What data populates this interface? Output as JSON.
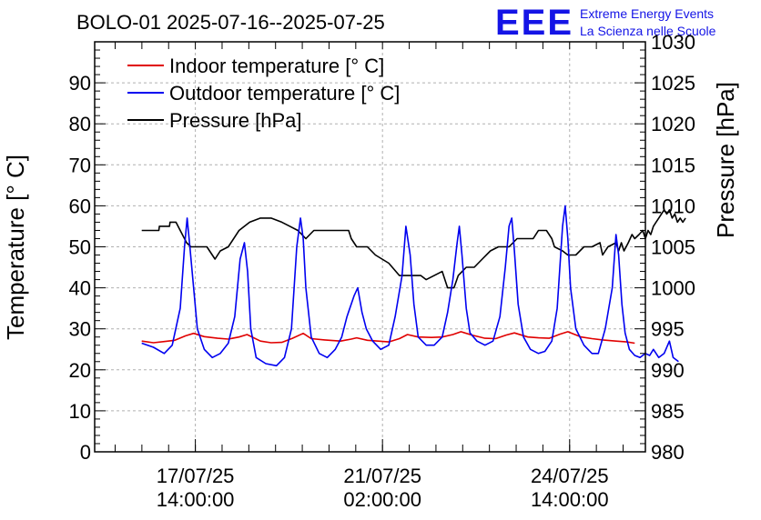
{
  "header": {
    "title": "BOLO-01 2025-07-16--2025-07-25",
    "logo_letters": "EEE",
    "logo_line1": "Extreme Energy Events",
    "logo_line2": "La Scienza nelle Scuole",
    "logo_color": "#1414e6"
  },
  "chart_data": {
    "type": "line",
    "title": "BOLO-01 2025-07-16--2025-07-25",
    "ylabel": "Temperature [° C]",
    "y2label": "Pressure [hPa]",
    "xlabel": "",
    "x_unit": "days since 2025-07-16 00:00",
    "xlim": [
      -0.3,
      10.0
    ],
    "ylim": [
      0,
      100
    ],
    "y2lim": [
      980,
      1030
    ],
    "yticks": [
      0,
      10,
      20,
      30,
      40,
      50,
      60,
      70,
      80,
      90
    ],
    "y2ticks": [
      980,
      985,
      990,
      995,
      1000,
      1005,
      1010,
      1015,
      1020,
      1025,
      1030
    ],
    "xticks": [
      {
        "x": 1.583,
        "line1": "17/07/25",
        "line2": "14:00:00"
      },
      {
        "x": 5.083,
        "line1": "21/07/25",
        "line2": "02:00:00"
      },
      {
        "x": 8.583,
        "line1": "24/07/25",
        "line2": "14:00:00"
      }
    ],
    "grid": true,
    "legend_position": "top-left",
    "series": [
      {
        "name": "Indoor temperature [° C]",
        "color": "#e00000",
        "axis": "left",
        "points": [
          [
            0.58,
            27.0
          ],
          [
            0.8,
            26.6
          ],
          [
            1.0,
            26.9
          ],
          [
            1.2,
            27.2
          ],
          [
            1.4,
            28.3
          ],
          [
            1.55,
            28.9
          ],
          [
            1.75,
            28.1
          ],
          [
            2.0,
            27.7
          ],
          [
            2.2,
            27.5
          ],
          [
            2.4,
            28.0
          ],
          [
            2.55,
            28.6
          ],
          [
            2.8,
            27.0
          ],
          [
            3.0,
            26.6
          ],
          [
            3.2,
            26.7
          ],
          [
            3.4,
            27.7
          ],
          [
            3.6,
            28.9
          ],
          [
            3.75,
            27.6
          ],
          [
            4.0,
            27.3
          ],
          [
            4.3,
            27.0
          ],
          [
            4.5,
            27.5
          ],
          [
            4.6,
            27.8
          ],
          [
            4.8,
            27.2
          ],
          [
            5.0,
            27.0
          ],
          [
            5.2,
            26.8
          ],
          [
            5.4,
            27.6
          ],
          [
            5.55,
            28.6
          ],
          [
            5.75,
            28.0
          ],
          [
            6.0,
            27.9
          ],
          [
            6.2,
            28.0
          ],
          [
            6.4,
            28.6
          ],
          [
            6.55,
            29.3
          ],
          [
            6.75,
            28.5
          ],
          [
            7.0,
            27.7
          ],
          [
            7.2,
            27.6
          ],
          [
            7.4,
            28.5
          ],
          [
            7.55,
            29.0
          ],
          [
            7.8,
            28.0
          ],
          [
            8.0,
            27.8
          ],
          [
            8.2,
            27.7
          ],
          [
            8.4,
            28.7
          ],
          [
            8.55,
            29.3
          ],
          [
            8.8,
            28.0
          ],
          [
            9.0,
            27.6
          ],
          [
            9.2,
            27.3
          ],
          [
            9.45,
            27.0
          ],
          [
            9.65,
            26.8
          ],
          [
            9.8,
            26.5
          ]
        ]
      },
      {
        "name": "Outdoor temperature [° C]",
        "color": "#0000f0",
        "axis": "left",
        "points": [
          [
            0.58,
            26.5
          ],
          [
            0.8,
            25.5
          ],
          [
            1.0,
            24.0
          ],
          [
            1.15,
            26.0
          ],
          [
            1.3,
            35.0
          ],
          [
            1.38,
            50.0
          ],
          [
            1.43,
            57.0
          ],
          [
            1.48,
            50.0
          ],
          [
            1.55,
            40.0
          ],
          [
            1.62,
            30.0
          ],
          [
            1.75,
            25.0
          ],
          [
            1.9,
            23.0
          ],
          [
            2.05,
            24.0
          ],
          [
            2.2,
            26.5
          ],
          [
            2.32,
            33.0
          ],
          [
            2.42,
            47.0
          ],
          [
            2.5,
            51.0
          ],
          [
            2.56,
            44.0
          ],
          [
            2.62,
            30.0
          ],
          [
            2.72,
            23.0
          ],
          [
            2.9,
            21.5
          ],
          [
            3.1,
            21.0
          ],
          [
            3.25,
            23.0
          ],
          [
            3.38,
            30.0
          ],
          [
            3.48,
            50.0
          ],
          [
            3.55,
            57.0
          ],
          [
            3.6,
            52.0
          ],
          [
            3.65,
            40.0
          ],
          [
            3.75,
            28.0
          ],
          [
            3.9,
            24.0
          ],
          [
            4.05,
            23.0
          ],
          [
            4.2,
            25.0
          ],
          [
            4.32,
            28.0
          ],
          [
            4.42,
            33.0
          ],
          [
            4.55,
            38.0
          ],
          [
            4.62,
            40.0
          ],
          [
            4.7,
            34.0
          ],
          [
            4.78,
            30.0
          ],
          [
            4.9,
            27.0
          ],
          [
            5.05,
            25.0
          ],
          [
            5.2,
            26.0
          ],
          [
            5.32,
            33.0
          ],
          [
            5.45,
            43.0
          ],
          [
            5.52,
            55.0
          ],
          [
            5.6,
            48.0
          ],
          [
            5.67,
            36.0
          ],
          [
            5.75,
            28.0
          ],
          [
            5.9,
            26.0
          ],
          [
            6.05,
            26.0
          ],
          [
            6.2,
            28.0
          ],
          [
            6.3,
            34.0
          ],
          [
            6.4,
            42.0
          ],
          [
            6.48,
            51.0
          ],
          [
            6.52,
            55.0
          ],
          [
            6.57,
            48.0
          ],
          [
            6.65,
            35.0
          ],
          [
            6.72,
            29.0
          ],
          [
            6.85,
            27.0
          ],
          [
            7.0,
            26.0
          ],
          [
            7.15,
            27.0
          ],
          [
            7.28,
            33.0
          ],
          [
            7.38,
            45.0
          ],
          [
            7.45,
            55.0
          ],
          [
            7.5,
            57.0
          ],
          [
            7.55,
            49.0
          ],
          [
            7.62,
            36.0
          ],
          [
            7.72,
            28.0
          ],
          [
            7.85,
            25.0
          ],
          [
            8.0,
            24.0
          ],
          [
            8.12,
            24.5
          ],
          [
            8.25,
            27.0
          ],
          [
            8.35,
            35.0
          ],
          [
            8.45,
            55.0
          ],
          [
            8.5,
            60.0
          ],
          [
            8.55,
            52.0
          ],
          [
            8.6,
            40.0
          ],
          [
            8.7,
            30.0
          ],
          [
            8.85,
            26.0
          ],
          [
            9.0,
            24.0
          ],
          [
            9.12,
            24.0
          ],
          [
            9.25,
            30.0
          ],
          [
            9.38,
            40.0
          ],
          [
            9.45,
            53.0
          ],
          [
            9.5,
            48.0
          ],
          [
            9.56,
            36.0
          ],
          [
            9.62,
            29.0
          ],
          [
            9.7,
            25.0
          ],
          [
            9.8,
            23.5
          ],
          [
            9.9,
            23.0
          ],
          [
            10.0,
            24.0
          ],
          [
            10.08,
            23.5
          ],
          [
            10.15,
            25.0
          ],
          [
            10.25,
            23.0
          ],
          [
            10.35,
            24.0
          ],
          [
            10.45,
            27.0
          ],
          [
            10.52,
            23.0
          ],
          [
            10.62,
            22.0
          ]
        ]
      },
      {
        "name": "Pressure [hPa]",
        "color": "#000000",
        "axis": "right",
        "points": [
          [
            0.58,
            1007.0
          ],
          [
            0.9,
            1007.0
          ],
          [
            0.91,
            1007.5
          ],
          [
            1.1,
            1007.5
          ],
          [
            1.11,
            1008.0
          ],
          [
            1.22,
            1008.0
          ],
          [
            1.3,
            1007.0
          ],
          [
            1.42,
            1005.5
          ],
          [
            1.5,
            1005.0
          ],
          [
            1.8,
            1005.0
          ],
          [
            1.9,
            1004.0
          ],
          [
            1.95,
            1003.5
          ],
          [
            2.05,
            1004.5
          ],
          [
            2.2,
            1005.0
          ],
          [
            2.4,
            1007.0
          ],
          [
            2.6,
            1008.0
          ],
          [
            2.8,
            1008.5
          ],
          [
            3.0,
            1008.5
          ],
          [
            3.2,
            1008.0
          ],
          [
            3.35,
            1007.5
          ],
          [
            3.5,
            1007.0
          ],
          [
            3.65,
            1006.0
          ],
          [
            3.8,
            1007.0
          ],
          [
            4.0,
            1007.0
          ],
          [
            4.3,
            1007.0
          ],
          [
            4.45,
            1007.0
          ],
          [
            4.5,
            1006.0
          ],
          [
            4.6,
            1005.0
          ],
          [
            4.8,
            1005.0
          ],
          [
            4.95,
            1004.0
          ],
          [
            5.2,
            1003.0
          ],
          [
            5.4,
            1001.5
          ],
          [
            5.6,
            1001.5
          ],
          [
            5.8,
            1001.5
          ],
          [
            5.9,
            1001.0
          ],
          [
            6.05,
            1001.5
          ],
          [
            6.2,
            1002.0
          ],
          [
            6.3,
            1000.0
          ],
          [
            6.42,
            1000.0
          ],
          [
            6.5,
            1001.5
          ],
          [
            6.65,
            1002.5
          ],
          [
            6.8,
            1002.5
          ],
          [
            6.95,
            1003.5
          ],
          [
            7.1,
            1004.5
          ],
          [
            7.25,
            1005.0
          ],
          [
            7.45,
            1005.0
          ],
          [
            7.6,
            1006.0
          ],
          [
            7.75,
            1006.0
          ],
          [
            7.9,
            1006.0
          ],
          [
            8.0,
            1007.0
          ],
          [
            8.15,
            1007.0
          ],
          [
            8.25,
            1006.0
          ],
          [
            8.3,
            1005.0
          ],
          [
            8.45,
            1004.5
          ],
          [
            8.55,
            1004.0
          ],
          [
            8.7,
            1004.0
          ],
          [
            8.85,
            1005.0
          ],
          [
            9.0,
            1005.0
          ],
          [
            9.15,
            1005.5
          ],
          [
            9.2,
            1004.0
          ],
          [
            9.25,
            1004.5
          ],
          [
            9.3,
            1005.0
          ],
          [
            9.45,
            1005.5
          ],
          [
            9.5,
            1004.5
          ],
          [
            9.55,
            1005.5
          ],
          [
            9.6,
            1004.5
          ],
          [
            9.68,
            1005.5
          ],
          [
            9.75,
            1006.5
          ],
          [
            9.8,
            1006.0
          ],
          [
            9.88,
            1006.5
          ],
          [
            9.95,
            1007.0
          ],
          [
            10.0,
            1006.0
          ],
          [
            10.05,
            1007.0
          ],
          [
            10.1,
            1006.5
          ],
          [
            10.15,
            1007.5
          ],
          [
            10.2,
            1008.0
          ],
          [
            10.25,
            1008.5
          ],
          [
            10.3,
            1009.0
          ],
          [
            10.35,
            1009.5
          ],
          [
            10.4,
            1009.0
          ],
          [
            10.45,
            1009.5
          ],
          [
            10.5,
            1008.5
          ],
          [
            10.55,
            1009.0
          ],
          [
            10.6,
            1008.0
          ],
          [
            10.65,
            1008.5
          ],
          [
            10.7,
            1008.0
          ],
          [
            10.75,
            1008.5
          ]
        ]
      }
    ]
  }
}
